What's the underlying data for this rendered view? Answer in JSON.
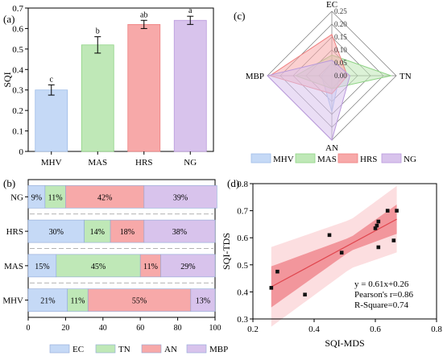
{
  "colors": {
    "MHV": "#c5d9f6",
    "MAS": "#bfe8b7",
    "HRS": "#f7a9a9",
    "NG": "#d8c3ec",
    "MHV_edge": "#9fbde8",
    "MAS_edge": "#8fd385",
    "HRS_edge": "#ef7f7f",
    "NG_edge": "#b999dc",
    "bar_stroke": "#8fa8d8",
    "fit_line": "#e0454d",
    "confidence_band": "#f08a8f",
    "prediction_band": "#fbd3d5",
    "points": "#111111"
  },
  "panel_labels": {
    "a": "(a)",
    "b": "(b)",
    "c": "(c)",
    "d": "(d)"
  },
  "chart_data": [
    {
      "id": "a",
      "type": "bar",
      "categories": [
        "MHV",
        "MAS",
        "HRS",
        "NG"
      ],
      "values": [
        0.3,
        0.52,
        0.62,
        0.64
      ],
      "errors": [
        0.025,
        0.04,
        0.02,
        0.02
      ],
      "significance": [
        "c",
        "b",
        "ab",
        "a"
      ],
      "ylabel": "SQI",
      "ylim": [
        0,
        0.7
      ],
      "yticks": [
        "0",
        "0.1",
        "0.2",
        "0.3",
        "0.4",
        "0.5",
        "0.6",
        "0.7"
      ],
      "grid": false
    },
    {
      "id": "b",
      "type": "bar",
      "orientation": "horizontal-stacked",
      "categories": [
        "NG",
        "HRS",
        "MAS",
        "MHV"
      ],
      "series": [
        {
          "name": "EC",
          "values": [
            9,
            30,
            15,
            21
          ],
          "labels": [
            "9%",
            "30%",
            "15%",
            "21%"
          ]
        },
        {
          "name": "TN",
          "values": [
            11,
            14,
            45,
            11
          ],
          "labels": [
            "11%",
            "14%",
            "45%",
            "11%"
          ]
        },
        {
          "name": "AN",
          "values": [
            42,
            18,
            11,
            55
          ],
          "labels": [
            "42%",
            "18%",
            "11%",
            "55%"
          ]
        },
        {
          "name": "MBP",
          "values": [
            39,
            38,
            29,
            13
          ],
          "labels": [
            "39%",
            "38%",
            "29%",
            "13%"
          ]
        }
      ],
      "xlim": [
        0,
        100
      ],
      "xticks": [
        "0",
        "20",
        "40",
        "60",
        "80",
        "100"
      ],
      "legend": "bottom",
      "grid": false
    },
    {
      "id": "c",
      "type": "radar",
      "axes": [
        "EC",
        "TN",
        "AN",
        "MBP"
      ],
      "rmax": 0.25,
      "ticks": [
        "0.00",
        "0.05",
        "0.10",
        "0.15",
        "0.20",
        "0.25"
      ],
      "series": [
        {
          "name": "MHV",
          "values": [
            0.05,
            0.03,
            0.14,
            0.04
          ]
        },
        {
          "name": "MAS",
          "values": [
            0.08,
            0.23,
            0.05,
            0.14
          ]
        },
        {
          "name": "HRS",
          "values": [
            0.16,
            0.06,
            0.07,
            0.24
          ]
        },
        {
          "name": "NG",
          "values": [
            0.06,
            0.07,
            0.25,
            0.25
          ]
        }
      ],
      "legend": "bottom"
    },
    {
      "id": "d",
      "type": "scatter",
      "points": [
        {
          "x": 0.26,
          "y": 0.415
        },
        {
          "x": 0.28,
          "y": 0.475
        },
        {
          "x": 0.37,
          "y": 0.39
        },
        {
          "x": 0.45,
          "y": 0.61
        },
        {
          "x": 0.49,
          "y": 0.545
        },
        {
          "x": 0.6,
          "y": 0.635
        },
        {
          "x": 0.605,
          "y": 0.645
        },
        {
          "x": 0.61,
          "y": 0.66
        },
        {
          "x": 0.61,
          "y": 0.565
        },
        {
          "x": 0.64,
          "y": 0.7
        },
        {
          "x": 0.66,
          "y": 0.59
        },
        {
          "x": 0.67,
          "y": 0.7
        }
      ],
      "fit": {
        "slope": 0.61,
        "intercept": 0.26
      },
      "annotation": [
        "y = 0.61x+0.26",
        "Pearson's r=0.86",
        "R-Square=0.74"
      ],
      "xlabel": "SQI-MDS",
      "ylabel": "SQI-TDS",
      "xlim": [
        0.2,
        0.8
      ],
      "ylim": [
        0.3,
        0.8
      ],
      "xticks": [
        "0.2",
        "0.4",
        "0.6",
        "0.8"
      ],
      "yticks": [
        "0.3",
        "0.4",
        "0.5",
        "0.6",
        "0.7",
        "0.8"
      ],
      "grid": false
    }
  ]
}
